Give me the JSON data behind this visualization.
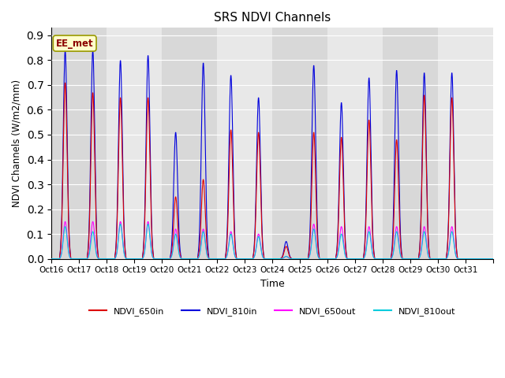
{
  "title": "SRS NDVI Channels",
  "xlabel": "Time",
  "ylabel": "NDVI Channels (W/m2/mm)",
  "ylim": [
    0.0,
    0.93
  ],
  "yticks": [
    0.0,
    0.1,
    0.2,
    0.3,
    0.4,
    0.5,
    0.6,
    0.7,
    0.8,
    0.9
  ],
  "annotation_text": "EE_met",
  "bg_color": "#e0e0e0",
  "fig_color": "#ffffff",
  "line_colors": {
    "NDVI_650in": "#dd0000",
    "NDVI_810in": "#0000dd",
    "NDVI_650out": "#ff00ff",
    "NDVI_810out": "#00ccdd"
  },
  "day_peaks_810in": [
    0.84,
    0.84,
    0.8,
    0.82,
    0.51,
    0.79,
    0.74,
    0.65,
    0.07,
    0.78,
    0.63,
    0.73,
    0.76,
    0.75,
    0.75,
    0.0
  ],
  "day_peaks_650in": [
    0.71,
    0.67,
    0.65,
    0.65,
    0.25,
    0.32,
    0.52,
    0.51,
    0.05,
    0.51,
    0.49,
    0.56,
    0.48,
    0.66,
    0.65,
    0.0
  ],
  "day_peaks_650out": [
    0.15,
    0.15,
    0.15,
    0.15,
    0.12,
    0.12,
    0.11,
    0.1,
    0.01,
    0.14,
    0.13,
    0.13,
    0.13,
    0.13,
    0.13,
    0.0
  ],
  "day_peaks_810out": [
    0.13,
    0.11,
    0.14,
    0.14,
    0.1,
    0.11,
    0.1,
    0.09,
    0.01,
    0.12,
    0.1,
    0.11,
    0.11,
    0.11,
    0.11,
    0.0
  ],
  "xtick_labels": [
    "Oct 16",
    "Oct 17",
    "Oct 18",
    "Oct 19",
    "Oct 20",
    "Oct 21",
    "Oct 22",
    "Oct 23",
    "Oct 24",
    "Oct 25",
    "Oct 26",
    "Oct 27",
    "Oct 28",
    "Oct 29",
    "Oct 30",
    "Oct 31"
  ],
  "n_points_per_day": 96,
  "n_days": 16,
  "band_colors": [
    "#d8d8d8",
    "#e8e8e8"
  ]
}
